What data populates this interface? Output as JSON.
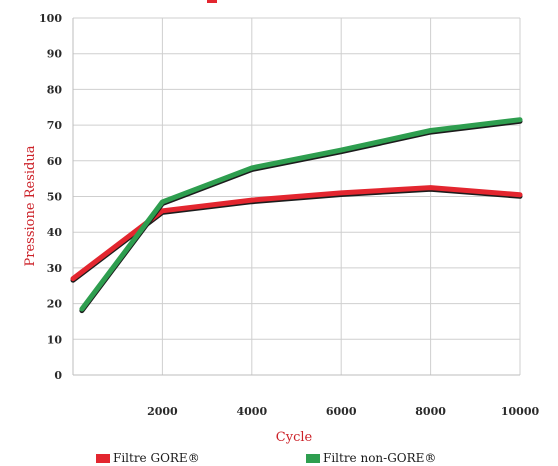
{
  "chart_data": {
    "type": "line",
    "xlabel": "Cycle",
    "ylabel": "Pressione Residua",
    "xlim": [
      0,
      10000
    ],
    "ylim": [
      0,
      100
    ],
    "x_ticks": [
      2000,
      4000,
      6000,
      8000,
      10000
    ],
    "y_ticks": [
      0,
      10,
      20,
      30,
      40,
      50,
      60,
      70,
      80,
      90,
      100
    ],
    "grid": true,
    "legend_position": "bottom",
    "series": [
      {
        "name": "Filtre GORE®",
        "color": "#e3262f",
        "x": [
          0,
          2000,
          4000,
          6000,
          8000,
          10000
        ],
        "y": [
          27,
          46,
          49,
          51,
          52.5,
          50.5
        ]
      },
      {
        "name": "Filtre non-GORE®",
        "color": "#2e9e4f",
        "x": [
          200,
          2000,
          4000,
          6000,
          8000,
          10000
        ],
        "y": [
          18.5,
          48.5,
          58,
          63,
          68.5,
          71.5
        ]
      }
    ]
  }
}
